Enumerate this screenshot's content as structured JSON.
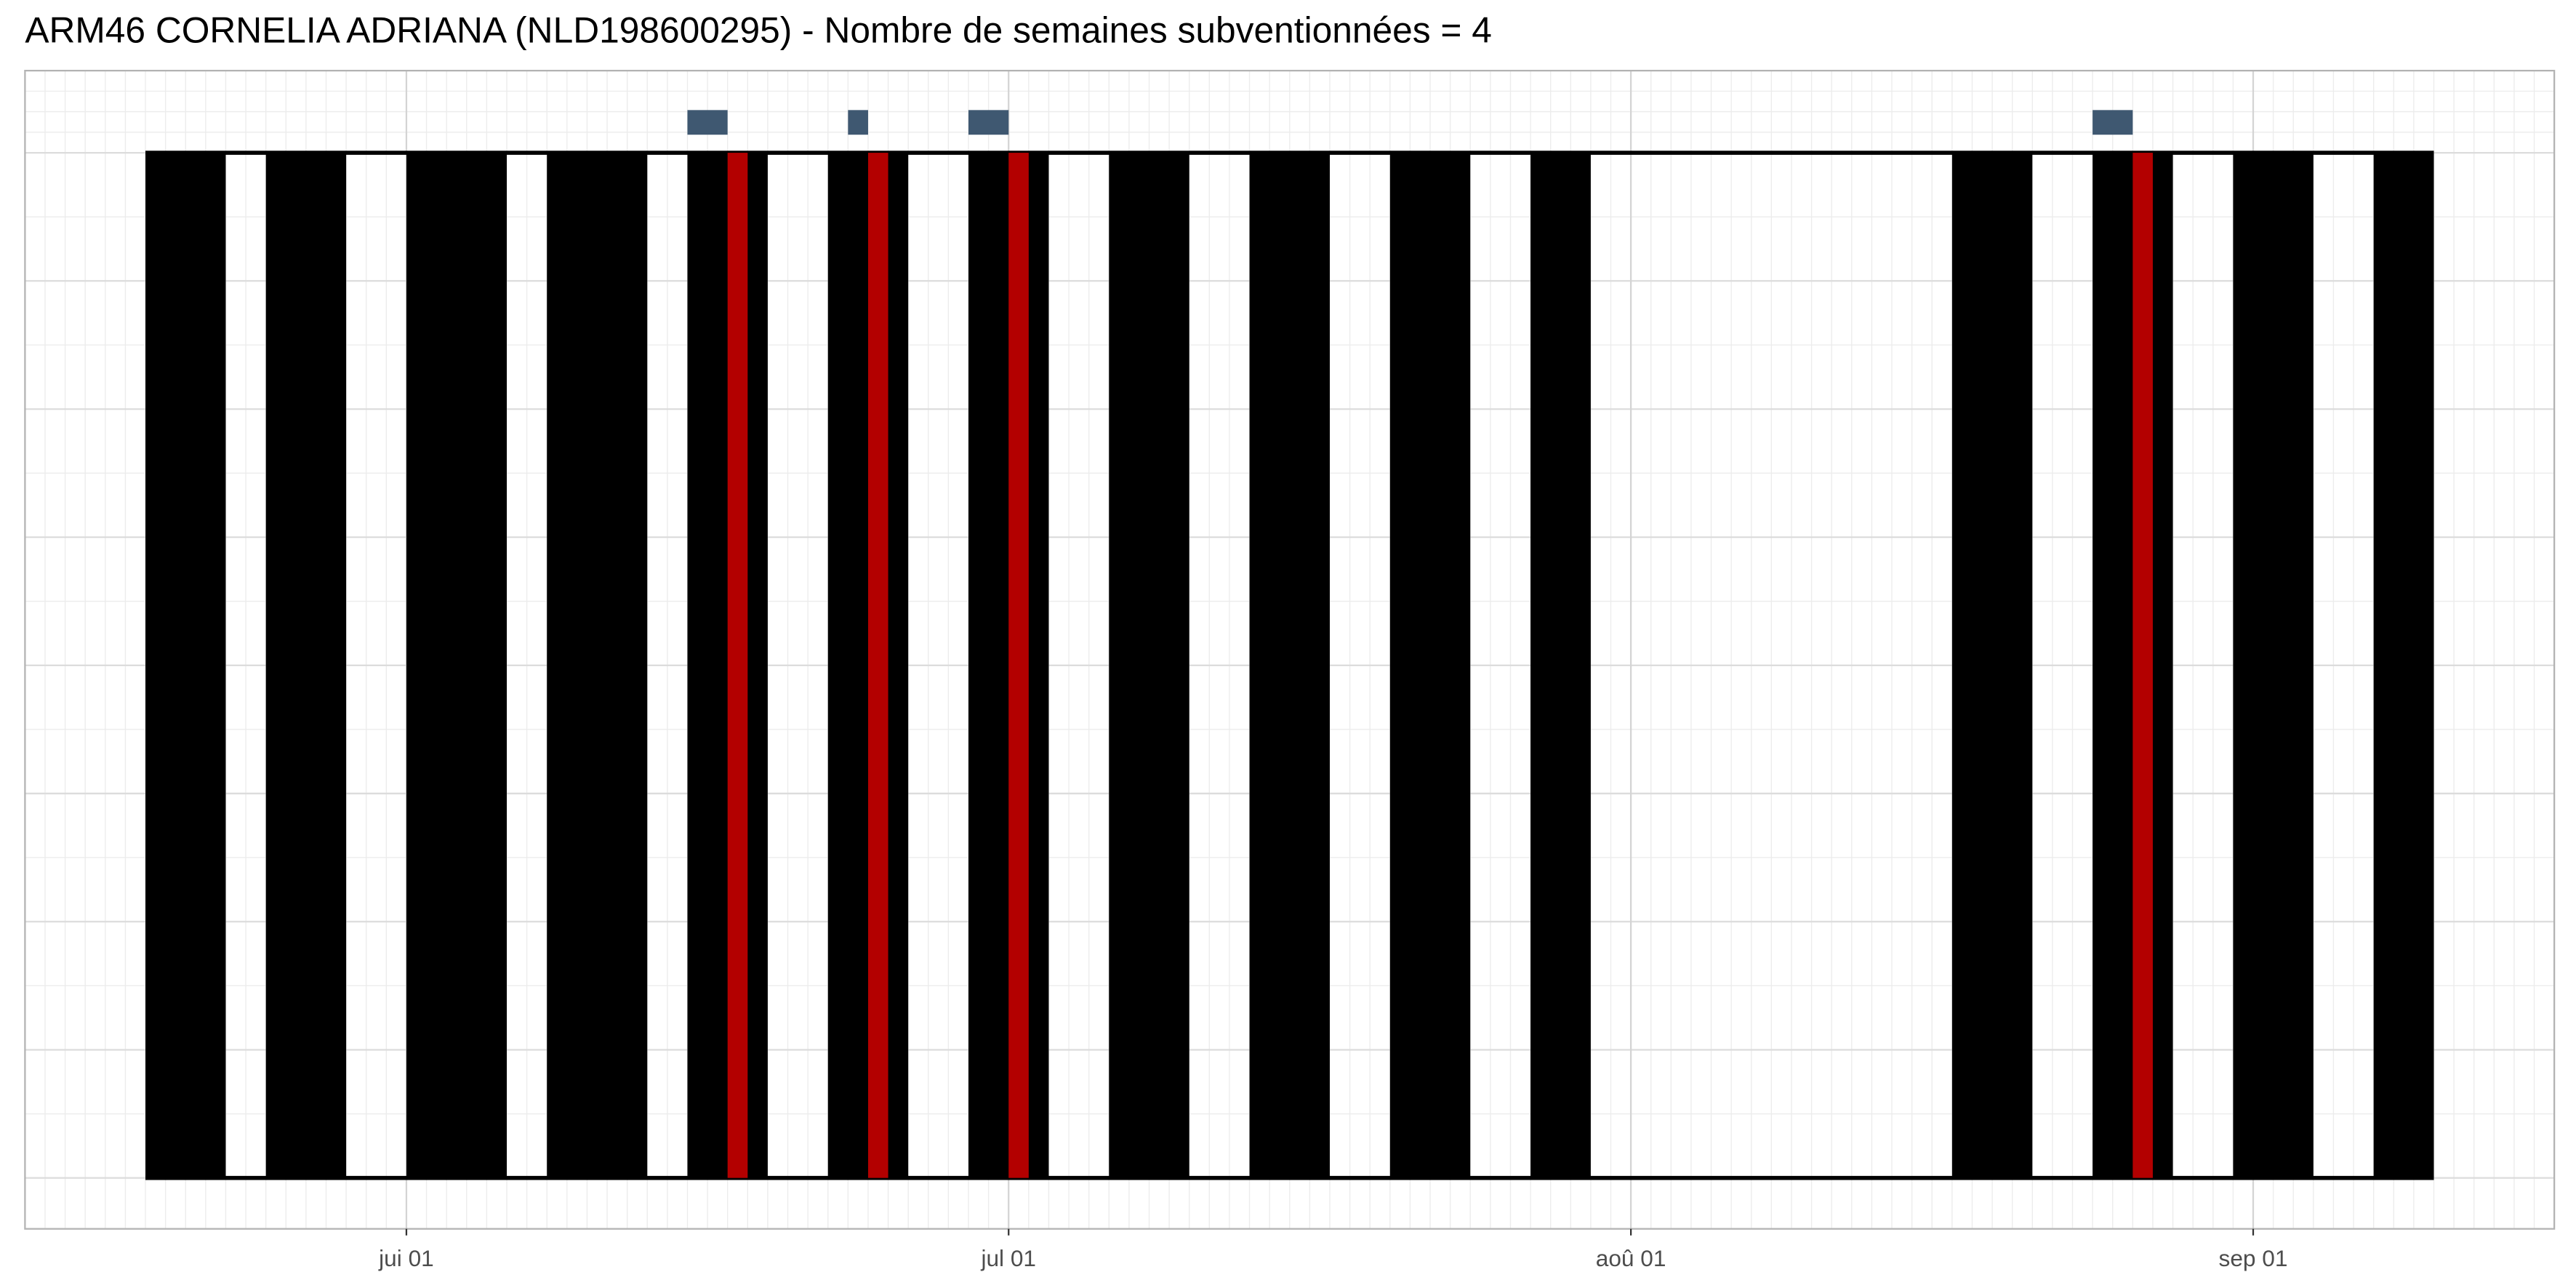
{
  "chart_data": {
    "type": "timeline",
    "title": "ARM46 CORNELIA ADRIANA (NLD198600295) - Nombre de semaines subventionnées = 4",
    "xlim": [
      "05-13",
      "09-16"
    ],
    "xticks": [
      {
        "value": "06-01",
        "label": "jui 01"
      },
      {
        "value": "07-01",
        "label": "jul 01"
      },
      {
        "value": "08-01",
        "label": "aoû 01"
      },
      {
        "value": "09-01",
        "label": "sep 01"
      }
    ],
    "grid": true,
    "span": {
      "start": "05-19",
      "end": "09-10"
    },
    "series": [
      {
        "color": "#000000",
        "starts": [
          "05-19",
          "05-25",
          "06-01",
          "06-08",
          "06-15",
          "06-22",
          "06-29",
          "07-06",
          "07-13",
          "07-20",
          "07-27",
          "08-17",
          "08-24",
          "08-31",
          "09-07"
        ],
        "ends": [
          "05-23",
          "05-29",
          "06-06",
          "06-13",
          "06-19",
          "06-26",
          "07-03",
          "07-10",
          "07-17",
          "07-24",
          "07-30",
          "08-21",
          "08-28",
          "09-04",
          "09-10"
        ]
      },
      {
        "color": "#b30000",
        "starts": [
          "06-17",
          "06-24",
          "07-01",
          "08-26"
        ],
        "ends": [
          "06-18",
          "06-25",
          "07-02",
          "08-27"
        ]
      },
      {
        "color": "#3f5871",
        "starts": [
          "06-15",
          "06-23",
          "06-29",
          "08-24"
        ],
        "ends": [
          "06-17",
          "06-24",
          "07-01",
          "08-26"
        ]
      }
    ]
  }
}
